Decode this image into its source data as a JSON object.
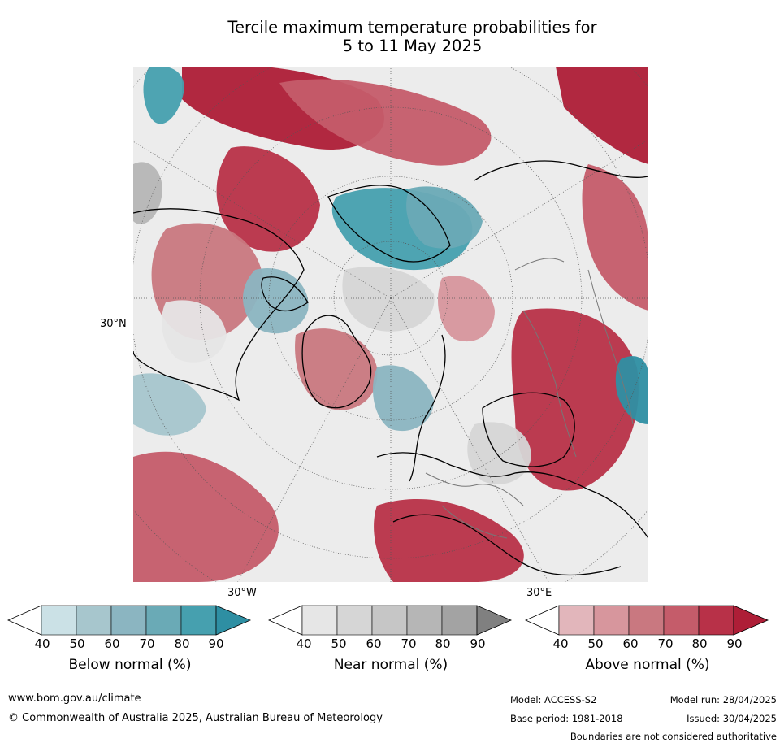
{
  "title_line1": "Tercile maximum temperature probabilities for",
  "title_line2": "5 to 11 May 2025",
  "map": {
    "lat_label": "30°N",
    "lon_labels": {
      "left": "30°W",
      "right": "30°E"
    },
    "colors": {
      "below": [
        "#cbe1e6",
        "#a7c6cd",
        "#8bb5c1",
        "#6aaab6",
        "#46a0af",
        "#2e8fa3"
      ],
      "near": [
        "#e6e6e6",
        "#d6d6d6",
        "#c6c6c6",
        "#b6b6b6",
        "#a3a3a3",
        "#808080"
      ],
      "above": [
        "#e2b6bb",
        "#d7969d",
        "#c97880",
        "#c55c6a",
        "#b83148",
        "#ae1e37"
      ]
    }
  },
  "colorbars": [
    {
      "name": "below",
      "label": "Below normal (%)",
      "ticks": [
        "40",
        "50",
        "60",
        "70",
        "80",
        "90"
      ]
    },
    {
      "name": "near",
      "label": "Near normal (%)",
      "ticks": [
        "40",
        "50",
        "60",
        "70",
        "80",
        "90"
      ]
    },
    {
      "name": "above",
      "label": "Above normal (%)",
      "ticks": [
        "40",
        "50",
        "60",
        "70",
        "80",
        "90"
      ]
    }
  ],
  "footer": {
    "url": "www.bom.gov.au/climate",
    "copyright": "© Commonwealth of Australia 2025, Australian Bureau of Meteorology",
    "model": "Model: ACCESS-S2",
    "base_period": "Base period: 1981-2018",
    "model_run": "Model run: 28/04/2025",
    "issued": "Issued: 30/04/2025",
    "disclaimer": "Boundaries are not considered authoritative"
  }
}
